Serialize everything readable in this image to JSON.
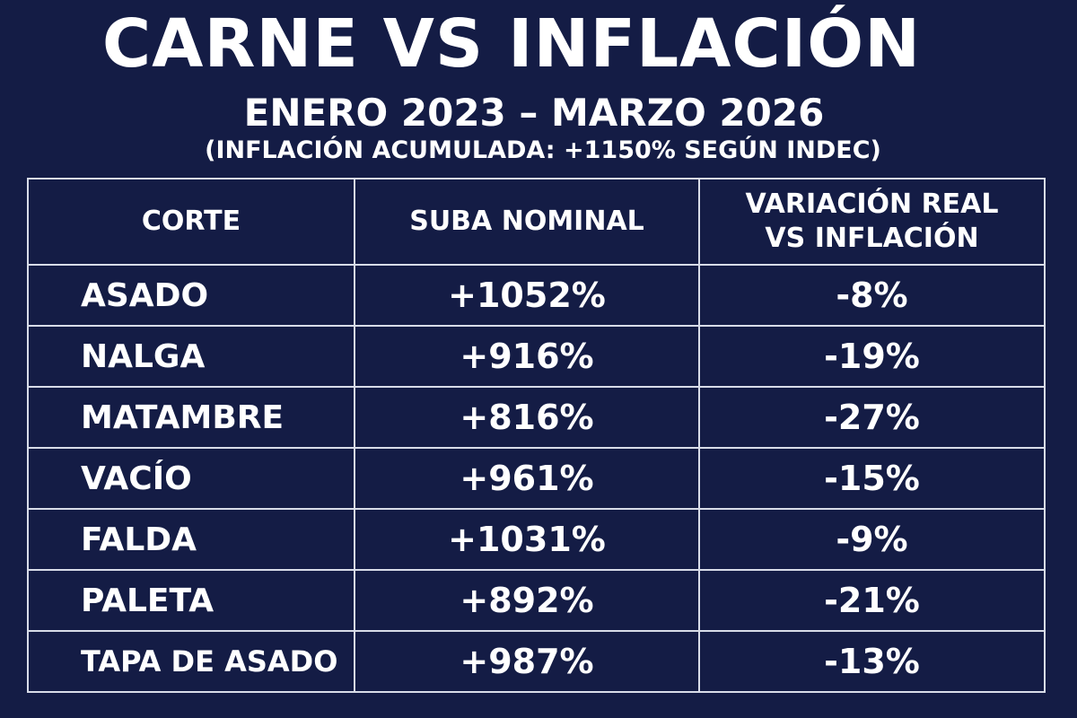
{
  "header": {
    "title": "CARNE VS INFLACIÓN",
    "subtitle": "ENERO 2023 – MARZO 2026",
    "note": "(INFLACIÓN ACUMULADA: +1150% SEGÚN INDEC)"
  },
  "chart_data": {
    "type": "table",
    "title": "CARNE VS INFLACIÓN",
    "subtitle": "ENERO 2023 – MARZO 2026",
    "annotation": "(INFLACIÓN ACUMULADA: +1150% SEGÚN INDEC)",
    "columns": [
      "CORTE",
      "SUBA NOMINAL",
      "VARIACIÓN REAL VS INFLACIÓN"
    ],
    "column_lines": [
      [
        "CORTE"
      ],
      [
        "SUBA NOMINAL"
      ],
      [
        "VARIACIÓN REAL",
        "VS INFLACIÓN"
      ]
    ],
    "rows": [
      {
        "corte": "ASADO",
        "nominal": "+1052%",
        "real": "-8%"
      },
      {
        "corte": "NALGA",
        "nominal": "+916%",
        "real": "-19%"
      },
      {
        "corte": "MATAMBRE",
        "nominal": "+816%",
        "real": "-27%"
      },
      {
        "corte": "VACÍO",
        "nominal": "+961%",
        "real": "-15%"
      },
      {
        "corte": "FALDA",
        "nominal": "+1031%",
        "real": "-9%"
      },
      {
        "corte": "PALETA",
        "nominal": "+892%",
        "real": "-21%"
      },
      {
        "corte": "TAPA DE ASADO",
        "nominal": "+987%",
        "real": "-13%"
      }
    ]
  },
  "colors": {
    "background": "#141c45",
    "text": "#ffffff",
    "grid": "#d8dce8"
  }
}
